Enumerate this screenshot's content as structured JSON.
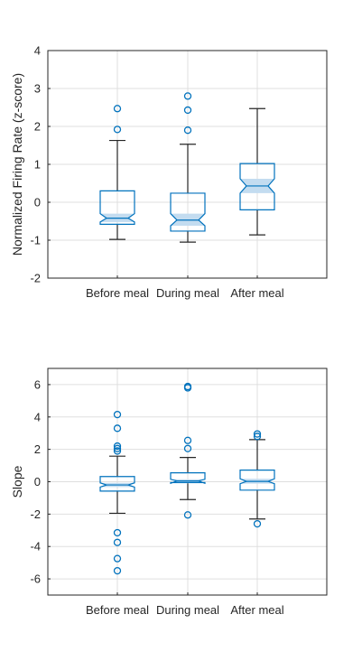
{
  "chart_data": [
    {
      "type": "boxplot",
      "notched": true,
      "ylabel": "Normalized Firing Rate (z-score)",
      "ylim": [
        -2,
        4
      ],
      "yticks": [
        -2,
        -1,
        0,
        1,
        2,
        3,
        4
      ],
      "grid": true,
      "categories": [
        "Before meal",
        "During meal",
        "After meal"
      ],
      "boxes": [
        {
          "q1": -0.58,
          "median": -0.42,
          "q3": 0.3,
          "whisker_low": -0.98,
          "whisker_high": 1.63,
          "notch_low": -0.52,
          "notch_high": -0.3,
          "outliers": [
            1.92,
            2.47
          ]
        },
        {
          "q1": -0.76,
          "median": -0.47,
          "q3": 0.24,
          "whisker_low": -1.05,
          "whisker_high": 1.53,
          "notch_low": -0.62,
          "notch_high": -0.3,
          "outliers": [
            1.9,
            2.43,
            2.8
          ]
        },
        {
          "q1": -0.2,
          "median": 0.43,
          "q3": 1.02,
          "whisker_low": -0.86,
          "whisker_high": 2.47,
          "notch_low": 0.24,
          "notch_high": 0.62,
          "outliers": []
        }
      ]
    },
    {
      "type": "boxplot",
      "notched": true,
      "ylabel": "Slope",
      "ylim": [
        -7,
        7
      ],
      "yticks": [
        -6,
        -4,
        -2,
        0,
        2,
        4,
        6
      ],
      "grid": true,
      "categories": [
        "Before meal",
        "During meal",
        "After meal"
      ],
      "boxes": [
        {
          "q1": -0.58,
          "median": -0.2,
          "q3": 0.32,
          "whisker_low": -1.95,
          "whisker_high": 1.58,
          "notch_low": -0.33,
          "notch_high": -0.07,
          "outliers": [
            1.9,
            2.05,
            2.2,
            3.3,
            4.15,
            -3.15,
            -3.75,
            -4.75,
            -5.5
          ]
        },
        {
          "q1": -0.05,
          "median": 0.05,
          "q3": 0.55,
          "whisker_low": -1.1,
          "whisker_high": 1.5,
          "notch_low": -0.1,
          "notch_high": 0.15,
          "outliers": [
            2.05,
            2.55,
            5.8,
            5.88,
            -2.05
          ]
        },
        {
          "q1": -0.52,
          "median": 0.02,
          "q3": 0.72,
          "whisker_low": -2.3,
          "whisker_high": 2.6,
          "notch_low": -0.12,
          "notch_high": 0.18,
          "outliers": [
            2.8,
            2.95,
            -2.6
          ]
        }
      ]
    }
  ],
  "colors": {
    "box": "#0072bd",
    "notch_fill": "#c3dcf0",
    "whisker": "#262626",
    "grid": "#dfdfdf",
    "axis": "#262626"
  }
}
